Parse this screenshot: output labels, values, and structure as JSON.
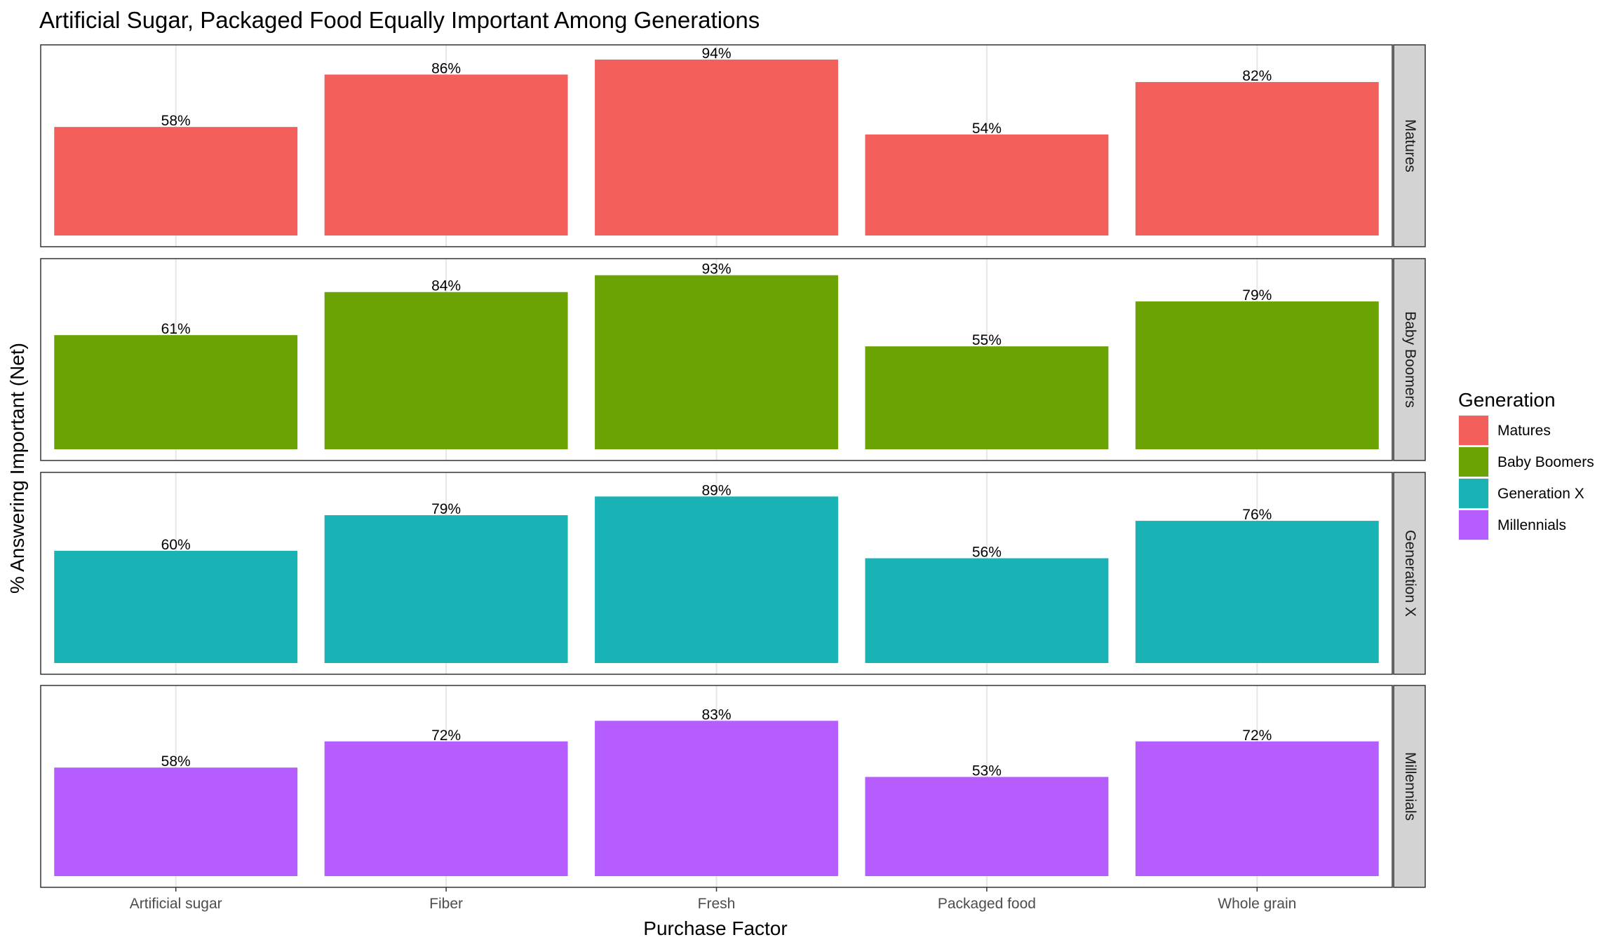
{
  "chart_data": {
    "type": "bar",
    "title": "Artificial Sugar, Packaged Food Equally Important Among Generations",
    "xlabel": "Purchase Factor",
    "ylabel": "% Answering Important (Net)",
    "categories": [
      "Artificial sugar",
      "Fiber",
      "Fresh",
      "Packaged food",
      "Whole grain"
    ],
    "ylim": [
      0,
      100
    ],
    "grid": true,
    "facets": "rows",
    "legend": {
      "title": "Generation",
      "placement": "right"
    },
    "series": [
      {
        "name": "Matures",
        "color": "#F35F5B",
        "values": [
          58,
          86,
          94,
          54,
          82
        ],
        "labels": [
          "58%",
          "86%",
          "94%",
          "54%",
          "82%"
        ]
      },
      {
        "name": "Baby Boomers",
        "color": "#6BA204",
        "values": [
          61,
          84,
          93,
          55,
          79
        ],
        "labels": [
          "61%",
          "84%",
          "93%",
          "55%",
          "79%"
        ]
      },
      {
        "name": "Generation X",
        "color": "#19B3B6",
        "values": [
          60,
          79,
          89,
          56,
          76
        ],
        "labels": [
          "60%",
          "79%",
          "89%",
          "56%",
          "76%"
        ]
      },
      {
        "name": "Millennials",
        "color": "#B65DFF",
        "values": [
          58,
          72,
          83,
          53,
          72
        ],
        "labels": [
          "58%",
          "72%",
          "83%",
          "53%",
          "72%"
        ]
      }
    ]
  }
}
